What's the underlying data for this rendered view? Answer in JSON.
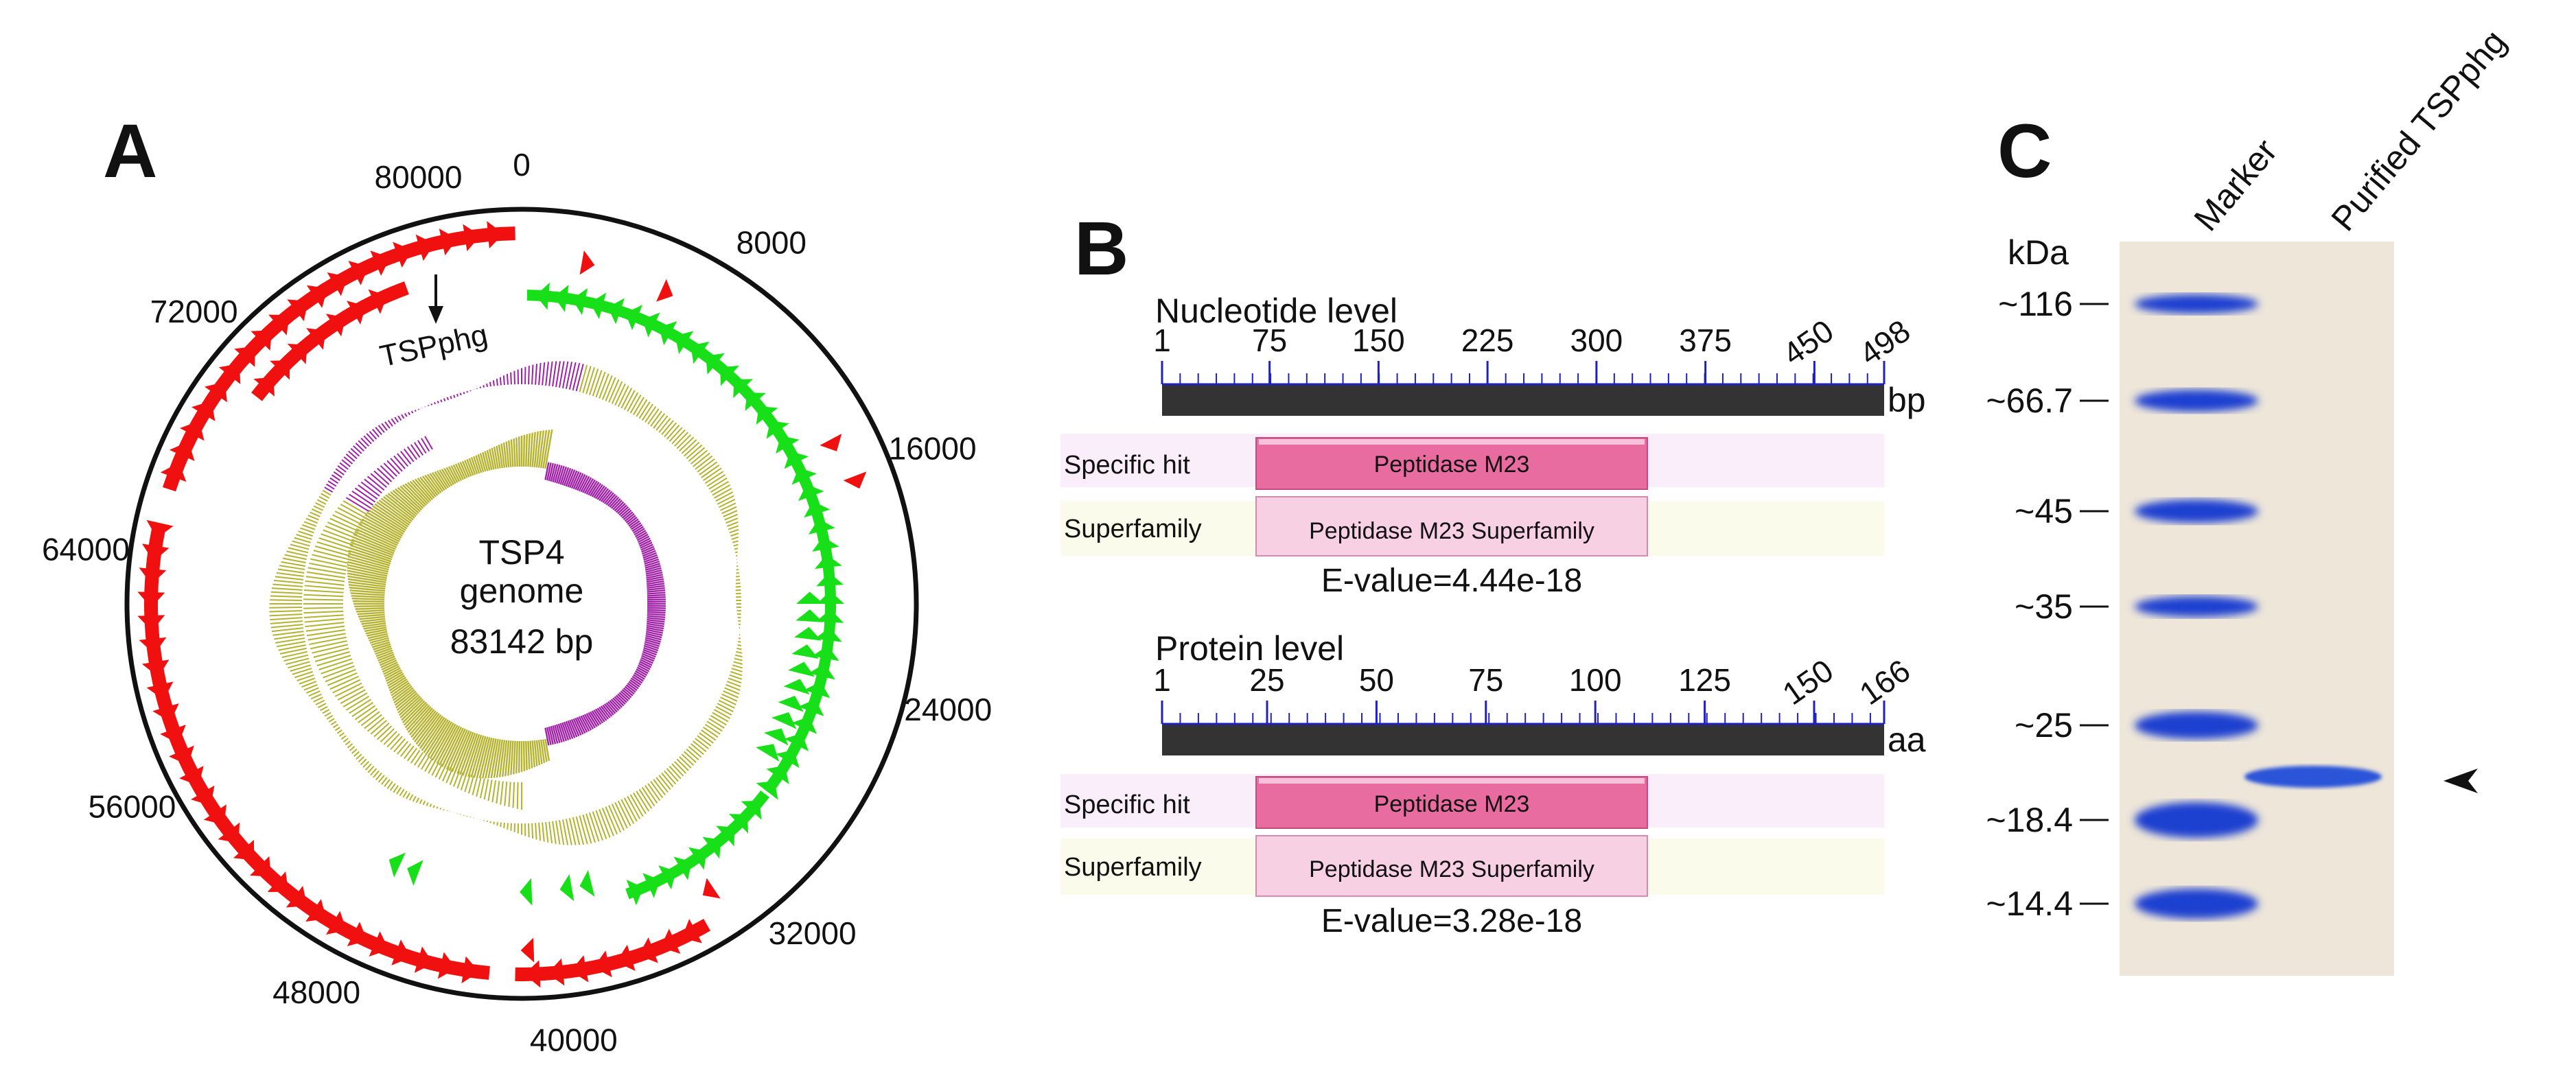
{
  "panel_a": {
    "label": "A",
    "center_title": "TSP4",
    "center_subtitle": "genome",
    "center_size": "83142 bp",
    "gene_annotation": "TSPphg",
    "ticks": [
      "0",
      "8000",
      "16000",
      "24000",
      "32000",
      "40000",
      "48000",
      "56000",
      "64000",
      "72000",
      "80000"
    ],
    "colors": {
      "forward_genes": "#f01010",
      "reverse_genes": "#18e018",
      "gc_content": "#b5b22e",
      "gc_skew": "#a020a8"
    }
  },
  "panel_b": {
    "label": "B",
    "nucleotide": {
      "title": "Nucleotide level",
      "ticks": [
        "1",
        "75",
        "150",
        "225",
        "300",
        "375",
        "450",
        "498"
      ],
      "unit": "bp",
      "specific_hit_label": "Specific hit",
      "specific_hit_domain": "Peptidase M23",
      "superfamily_label": "Superfamily",
      "superfamily_domain": "Peptidase M23 Superfamily",
      "evalue": "E-value=4.44e-18"
    },
    "protein": {
      "title": "Protein level",
      "ticks": [
        "1",
        "25",
        "50",
        "75",
        "100",
        "125",
        "150",
        "166"
      ],
      "unit": "aa",
      "specific_hit_label": "Specific hit",
      "specific_hit_domain": "Peptidase M23",
      "superfamily_label": "Superfamily",
      "superfamily_domain": "Peptidase M23 Superfamily",
      "evalue": "E-value=3.28e-18"
    },
    "colors": {
      "ruler": "#333333",
      "tick": "#2020c0",
      "hit_box": "#e86ca0",
      "super_box": "#f8d0e4",
      "hit_row": "#fbeefb",
      "super_row": "#fbfbec"
    }
  },
  "panel_c": {
    "label": "C",
    "unit_label": "kDa",
    "lane_labels": [
      "Marker",
      "Purified TSPphg"
    ],
    "marker_labels": [
      "~116",
      "~66.7",
      "~45",
      "~35",
      "~25",
      "~18.4",
      "~14.4"
    ],
    "colors": {
      "band": "#1a3fd0",
      "gel": "#f3ecde"
    }
  }
}
